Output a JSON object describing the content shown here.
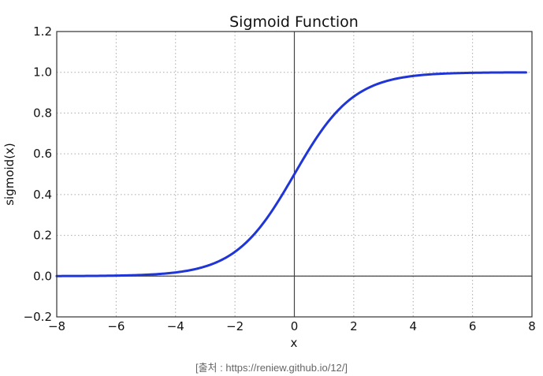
{
  "chart_data": {
    "type": "line",
    "title": "Sigmoid Function",
    "xlabel": "x",
    "ylabel": "sigmoid(x)",
    "xlim": [
      -8,
      8
    ],
    "ylim": [
      -0.2,
      1.2
    ],
    "xticks": [
      -8,
      -6,
      -4,
      -2,
      0,
      2,
      4,
      6,
      8
    ],
    "xtick_labels": [
      "−8",
      "−6",
      "−4",
      "−2",
      "0",
      "2",
      "4",
      "6",
      "8"
    ],
    "yticks": [
      -0.2,
      0.0,
      0.2,
      0.4,
      0.6,
      0.8,
      1.0,
      1.2
    ],
    "ytick_labels": [
      "−0.2",
      "0.0",
      "0.2",
      "0.4",
      "0.6",
      "0.8",
      "1.0",
      "1.2"
    ],
    "grid": true,
    "grid_style": "dotted",
    "reference_lines": {
      "x": 0,
      "y": 0
    },
    "legend": null,
    "series": [
      {
        "name": "sigmoid(x)",
        "color": "#1f35d6",
        "formula": "1 / (1 + exp(-x))",
        "x": [
          -8,
          -7,
          -6,
          -5,
          -4,
          -3,
          -2,
          -1,
          0,
          1,
          2,
          3,
          4,
          5,
          6,
          7,
          7.8
        ],
        "y": [
          0.0003,
          0.0009,
          0.0025,
          0.0067,
          0.018,
          0.047,
          0.119,
          0.269,
          0.5,
          0.731,
          0.881,
          0.953,
          0.982,
          0.993,
          0.998,
          0.999,
          1.0
        ]
      }
    ]
  },
  "caption": "[출처 : https://reniew.github.io/12/]"
}
